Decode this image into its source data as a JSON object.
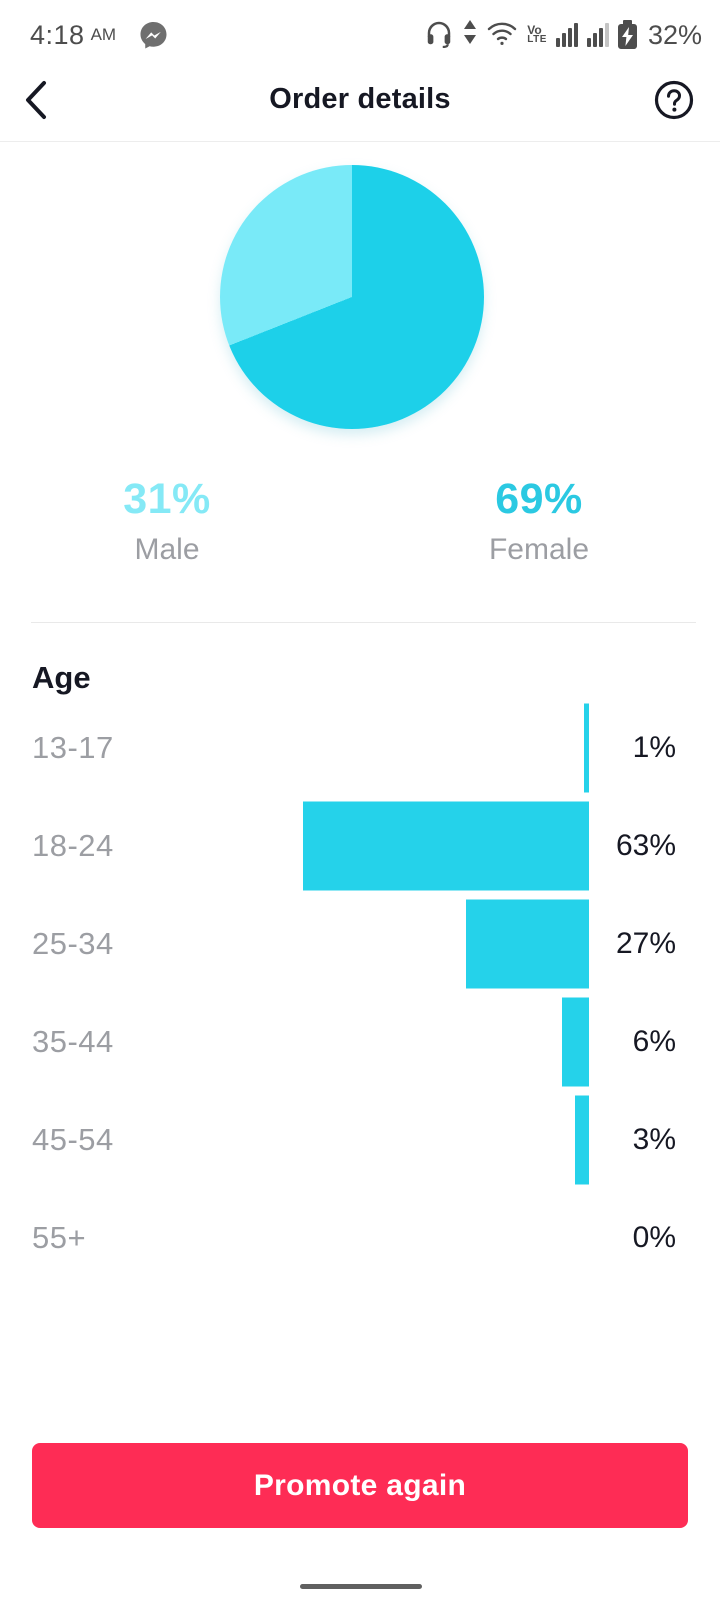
{
  "status_bar": {
    "time": "4:18",
    "meridiem": "AM",
    "battery_percent": "32%",
    "volte_line1": "Vo",
    "volte_line2": "LTE",
    "icons": [
      "messenger-icon",
      "headset-icon",
      "data-arrows-icon",
      "wifi-icon",
      "volte-icon",
      "signal-sim1-icon",
      "signal-sim2-icon",
      "battery-charging-icon"
    ]
  },
  "header": {
    "title": "Order details"
  },
  "gender_stats": {
    "male": {
      "percent": "31%",
      "label": "Male"
    },
    "female": {
      "percent": "69%",
      "label": "Female"
    }
  },
  "age_section": {
    "title": "Age"
  },
  "footer": {
    "promote_button_label": "Promote again"
  },
  "colors": {
    "pie_female": "#1dd0e9",
    "pie_male": "#79eaf8",
    "bar_cyan": "#25d2ea",
    "female_text": "#2bc9e2",
    "male_text": "#85e9f6",
    "accent_red": "#fe2c55",
    "label_gray": "#9c9ea3",
    "text_dark": "#161823"
  },
  "chart_data": [
    {
      "type": "pie",
      "title": "Gender split",
      "labels": [
        "Female",
        "Male"
      ],
      "values": [
        69,
        31
      ],
      "unit": "%",
      "colors": [
        "#1dd0e9",
        "#79eaf8"
      ],
      "start_angle_deg": 0,
      "direction": "clockwise",
      "legend_position": "below"
    },
    {
      "type": "bar",
      "title": "Age",
      "orientation": "horizontal-right-aligned",
      "categories": [
        "13-17",
        "18-24",
        "25-34",
        "35-44",
        "45-54",
        "55+"
      ],
      "values": [
        1,
        63,
        27,
        6,
        3,
        0
      ],
      "value_labels": [
        "1%",
        "63%",
        "27%",
        "6%",
        "3%",
        "0%"
      ],
      "unit": "%",
      "xlim": [
        0,
        63
      ],
      "grid": false
    }
  ]
}
